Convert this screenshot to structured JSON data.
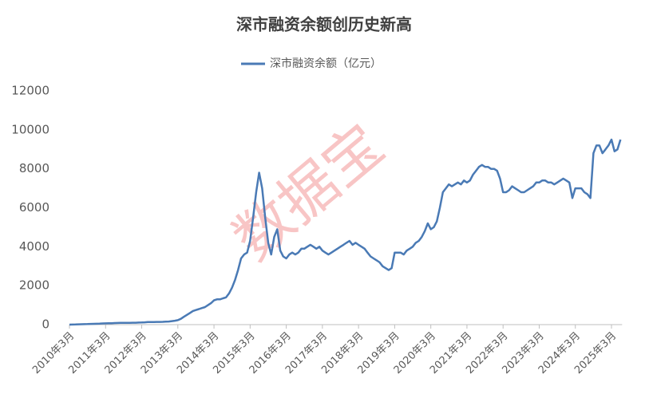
{
  "chart_data": {
    "type": "line",
    "title": "深市融资余额创历史新高",
    "watermark": "数据宝",
    "categories": [
      "2010年3月",
      null,
      null,
      null,
      null,
      null,
      null,
      null,
      null,
      null,
      null,
      null,
      "2011年3月",
      null,
      null,
      null,
      null,
      null,
      null,
      null,
      null,
      null,
      null,
      null,
      "2012年3月",
      null,
      null,
      null,
      null,
      null,
      null,
      null,
      null,
      null,
      null,
      null,
      "2013年3月",
      null,
      null,
      null,
      null,
      null,
      null,
      null,
      null,
      null,
      null,
      null,
      "2014年3月",
      null,
      null,
      null,
      null,
      null,
      null,
      null,
      null,
      null,
      null,
      null,
      "2015年3月",
      null,
      null,
      null,
      null,
      null,
      null,
      null,
      null,
      null,
      null,
      null,
      "2016年3月",
      null,
      null,
      null,
      null,
      null,
      null,
      null,
      null,
      null,
      null,
      null,
      "2017年3月",
      null,
      null,
      null,
      null,
      null,
      null,
      null,
      null,
      null,
      null,
      null,
      "2018年3月",
      null,
      null,
      null,
      null,
      null,
      null,
      null,
      null,
      null,
      null,
      null,
      "2019年3月",
      null,
      null,
      null,
      null,
      null,
      null,
      null,
      null,
      null,
      null,
      null,
      "2020年3月",
      null,
      null,
      null,
      null,
      null,
      null,
      null,
      null,
      null,
      null,
      null,
      "2021年3月",
      null,
      null,
      null,
      null,
      null,
      null,
      null,
      null,
      null,
      null,
      null,
      "2022年3月",
      null,
      null,
      null,
      null,
      null,
      null,
      null,
      null,
      null,
      null,
      null,
      "2023年3月",
      null,
      null,
      null,
      null,
      null,
      null,
      null,
      null,
      null,
      null,
      null,
      "2024年3月",
      null,
      null,
      null,
      null,
      null,
      null,
      null,
      null,
      null,
      null,
      null,
      "2025年3月",
      null,
      null,
      null
    ],
    "series": [
      {
        "name": "深市融资余额（亿元）",
        "color": "#4a7ab5",
        "values": [
          0,
          5,
          10,
          15,
          20,
          25,
          30,
          35,
          40,
          45,
          50,
          60,
          65,
          70,
          75,
          80,
          85,
          90,
          90,
          95,
          95,
          100,
          100,
          105,
          110,
          120,
          130,
          130,
          135,
          140,
          140,
          145,
          150,
          160,
          180,
          200,
          230,
          300,
          400,
          500,
          600,
          700,
          750,
          800,
          850,
          900,
          1000,
          1100,
          1250,
          1300,
          1300,
          1350,
          1400,
          1600,
          1900,
          2300,
          2800,
          3400,
          3600,
          3700,
          4300,
          5500,
          6800,
          7800,
          7000,
          5500,
          4200,
          3600,
          4500,
          4900,
          3800,
          3500,
          3400,
          3600,
          3700,
          3600,
          3700,
          3900,
          3900,
          4000,
          4100,
          4000,
          3900,
          4000,
          3800,
          3700,
          3600,
          3700,
          3800,
          3900,
          4000,
          4100,
          4200,
          4300,
          4100,
          4200,
          4100,
          4000,
          3900,
          3700,
          3500,
          3400,
          3300,
          3200,
          3000,
          2900,
          2800,
          2900,
          3700,
          3700,
          3700,
          3600,
          3800,
          3900,
          4000,
          4200,
          4300,
          4500,
          4800,
          5200,
          4900,
          5000,
          5300,
          6000,
          6800,
          7000,
          7200,
          7100,
          7200,
          7300,
          7200,
          7400,
          7300,
          7400,
          7700,
          7900,
          8100,
          8200,
          8100,
          8100,
          8000,
          8000,
          7900,
          7500,
          6800,
          6800,
          6900,
          7100,
          7000,
          6900,
          6800,
          6800,
          6900,
          7000,
          7100,
          7300,
          7300,
          7400,
          7400,
          7300,
          7300,
          7200,
          7300,
          7400,
          7500,
          7400,
          7300,
          6500,
          7000,
          7000,
          7000,
          6800,
          6700,
          6500,
          8800,
          9200,
          9200,
          8800,
          9000,
          9200,
          9500,
          8900,
          9000,
          9500
        ]
      }
    ],
    "ylim": [
      0,
      12000
    ],
    "yticks": [
      0,
      2000,
      4000,
      6000,
      8000,
      10000,
      12000
    ],
    "grid": false
  }
}
